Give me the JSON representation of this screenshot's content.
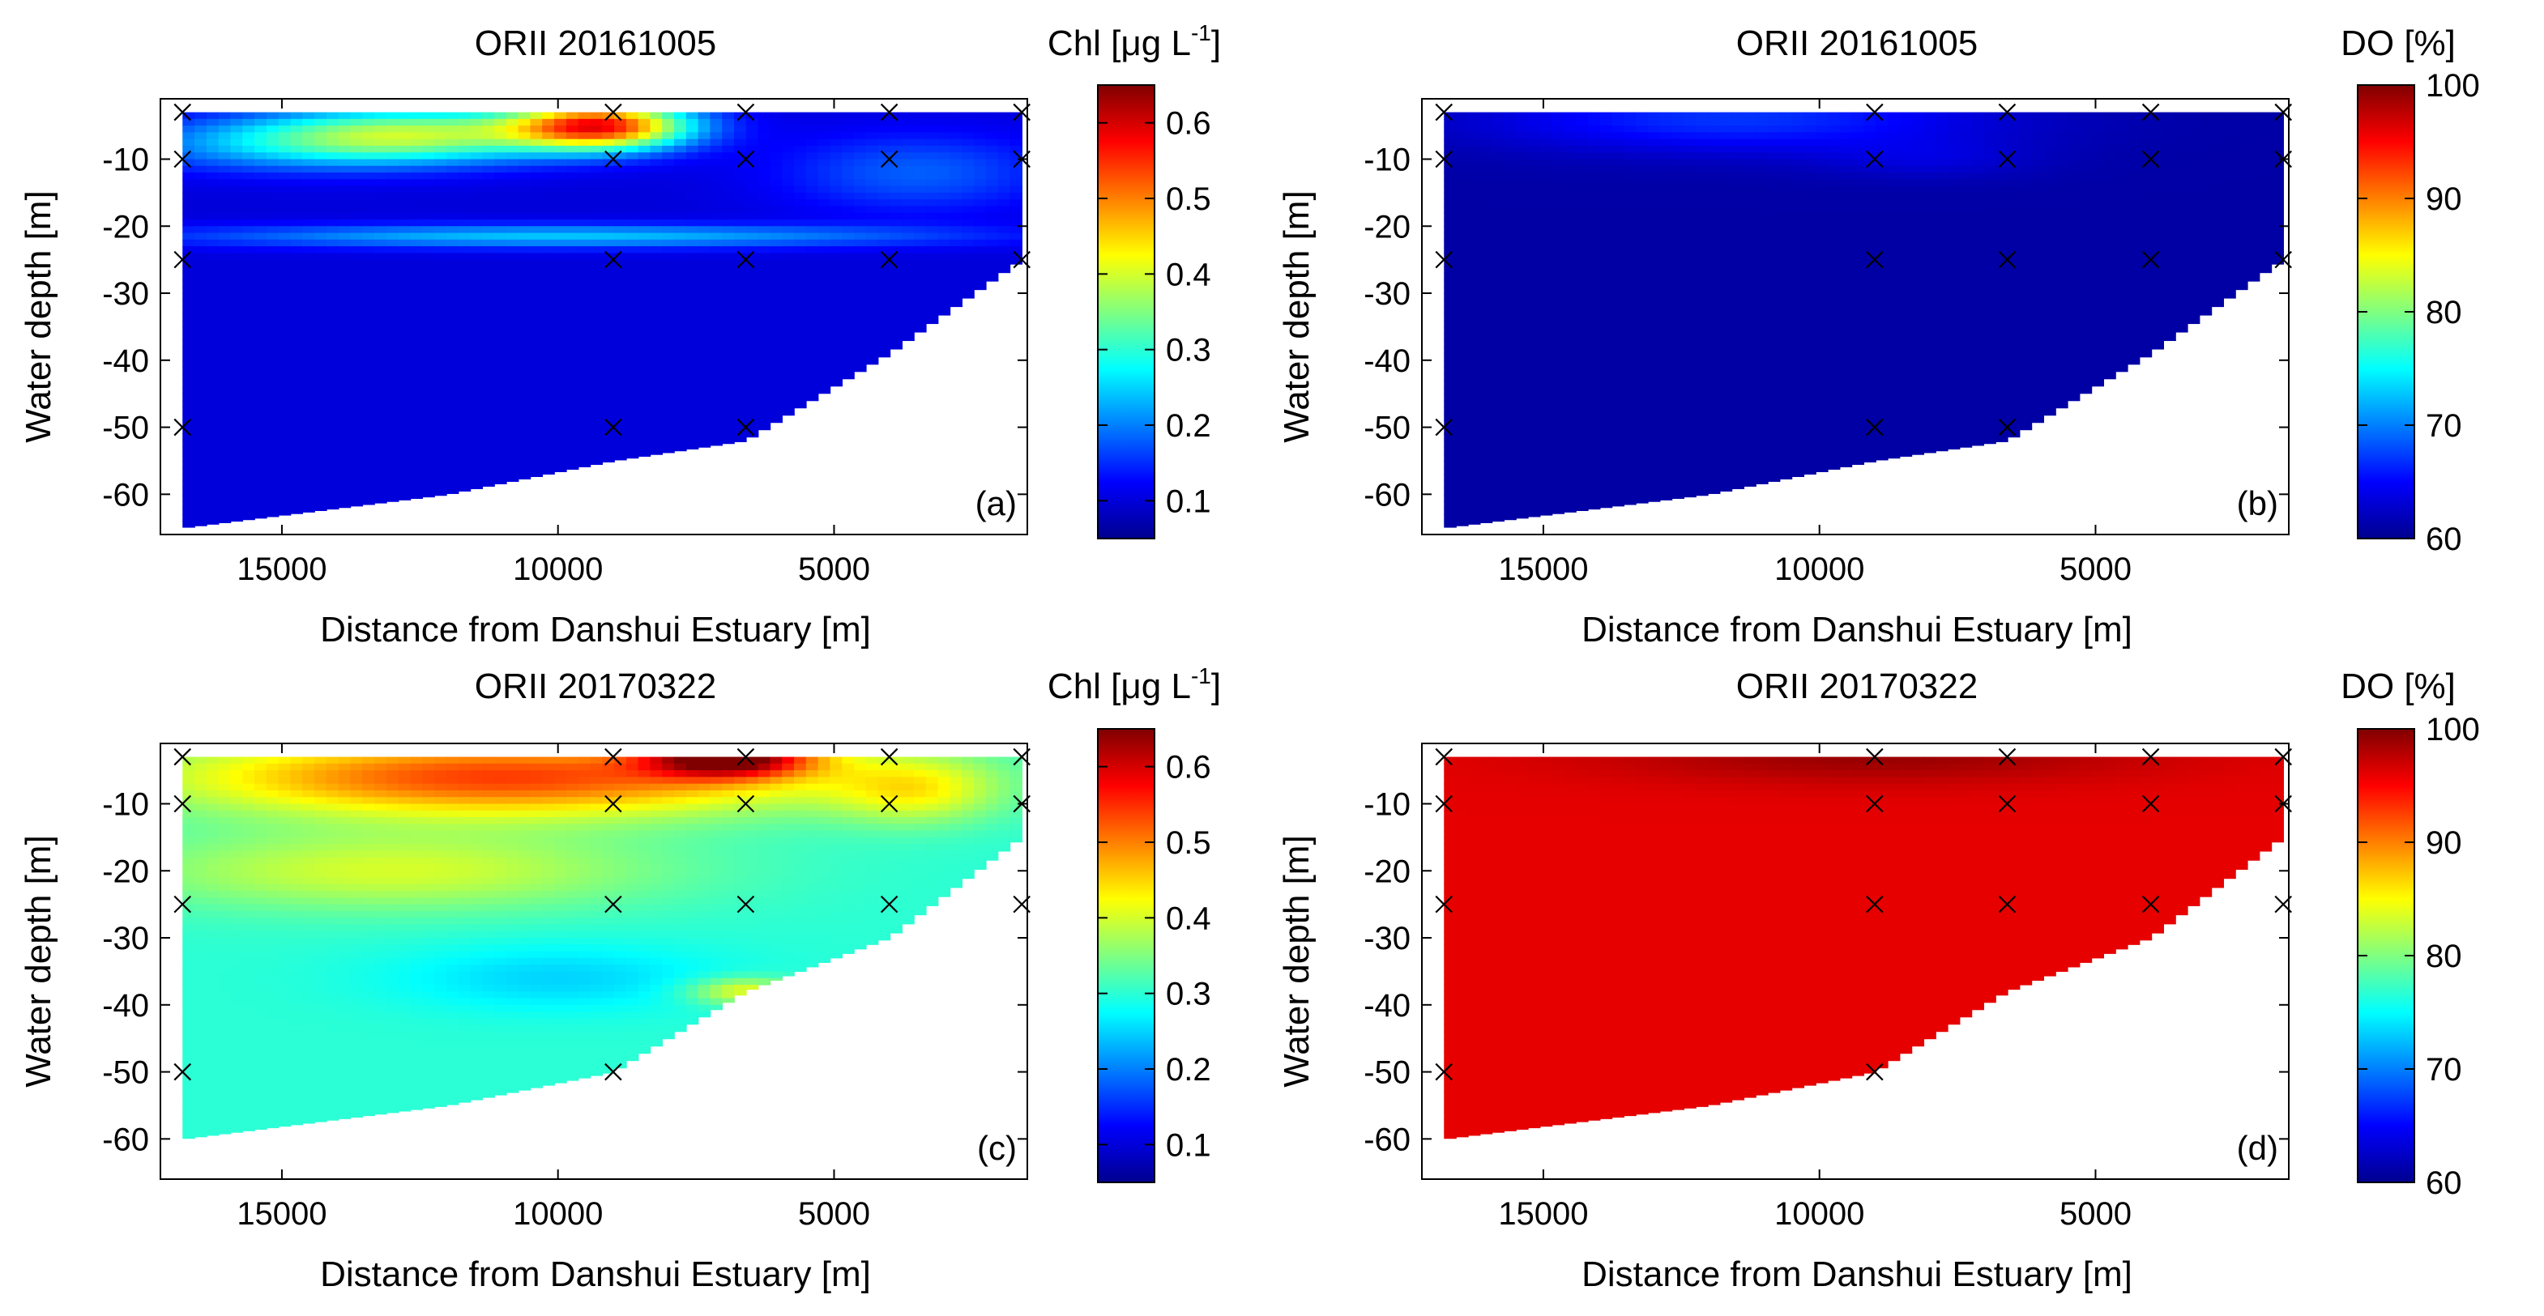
{
  "chart_data": [
    {
      "type": "heatmap",
      "panel_label": "(a)",
      "title": "ORII 20161005",
      "xlabel": "Distance from Danshui Estuary [m]",
      "ylabel": "Water depth [m]",
      "xlim": [
        17200,
        1500
      ],
      "ylim": [
        -66,
        -1
      ],
      "xticks": [
        15000,
        10000,
        5000
      ],
      "yticks": [
        -10,
        -20,
        -30,
        -40,
        -50,
        -60
      ],
      "variable": "Chl",
      "colorbar": {
        "label_main": "Chl [",
        "label_mu": "μ",
        "label_rest": "g L",
        "label_sup": "-1",
        "label_close": "]",
        "min": 0.05,
        "max": 0.65,
        "ticks": [
          0.1,
          0.2,
          0.3,
          0.4,
          0.5,
          0.6
        ]
      },
      "bottom_profile": [
        [
          16800,
          -65
        ],
        [
          12000,
          -60
        ],
        [
          9000,
          -55
        ],
        [
          6600,
          -52
        ],
        [
          4000,
          -39
        ],
        [
          1600,
          -25
        ]
      ],
      "stations": [
        [
          16800,
          -3
        ],
        [
          16800,
          -10
        ],
        [
          16800,
          -25
        ],
        [
          16800,
          -50
        ],
        [
          9000,
          -3
        ],
        [
          9000,
          -10
        ],
        [
          9000,
          -25
        ],
        [
          9000,
          -50
        ],
        [
          6600,
          -3
        ],
        [
          6600,
          -10
        ],
        [
          6600,
          -25
        ],
        [
          6600,
          -50
        ],
        [
          4000,
          -3
        ],
        [
          4000,
          -10
        ],
        [
          4000,
          -25
        ],
        [
          1600,
          -3
        ],
        [
          1600,
          -10
        ],
        [
          1600,
          -25
        ]
      ],
      "field_base": 0.1,
      "features": [
        {
          "x": 9200,
          "y": -5,
          "sx": 1600,
          "sy": 3.5,
          "a": 0.42
        },
        {
          "x": 12500,
          "y": -6,
          "sx": 3000,
          "sy": 4,
          "a": 0.22
        },
        {
          "x": 14500,
          "y": -8,
          "sx": 3500,
          "sy": 4,
          "a": 0.12
        },
        {
          "x": 10000,
          "y": -21.5,
          "sx": 7000,
          "sy": 1.8,
          "a": 0.14
        },
        {
          "x": 3500,
          "y": -12,
          "sx": 2500,
          "sy": 6,
          "a": 0.08
        }
      ]
    },
    {
      "type": "heatmap",
      "panel_label": "(b)",
      "title": "ORII 20161005",
      "xlabel": "Distance from Danshui Estuary [m]",
      "ylabel": "Water depth [m]",
      "xlim": [
        17200,
        1500
      ],
      "ylim": [
        -66,
        -1
      ],
      "xticks": [
        15000,
        10000,
        5000
      ],
      "yticks": [
        -10,
        -20,
        -30,
        -40,
        -50,
        -60
      ],
      "variable": "DO",
      "colorbar": {
        "label_main": "DO [%]",
        "min": 60,
        "max": 100,
        "ticks": [
          60,
          70,
          80,
          90,
          100
        ]
      },
      "bottom_profile": [
        [
          16800,
          -65
        ],
        [
          12000,
          -60
        ],
        [
          9000,
          -55
        ],
        [
          6600,
          -52
        ],
        [
          4000,
          -39
        ],
        [
          1600,
          -25
        ]
      ],
      "stations": [
        [
          16800,
          -3
        ],
        [
          16800,
          -10
        ],
        [
          16800,
          -25
        ],
        [
          16800,
          -50
        ],
        [
          9000,
          -3
        ],
        [
          9000,
          -10
        ],
        [
          9000,
          -25
        ],
        [
          9000,
          -50
        ],
        [
          6600,
          -3
        ],
        [
          6600,
          -10
        ],
        [
          6600,
          -25
        ],
        [
          6600,
          -50
        ],
        [
          4000,
          -3
        ],
        [
          4000,
          -10
        ],
        [
          4000,
          -25
        ],
        [
          1600,
          -3
        ],
        [
          1600,
          -10
        ],
        [
          1600,
          -25
        ]
      ],
      "field_base": 61,
      "features": [
        {
          "x": 11500,
          "y": -4,
          "sx": 4500,
          "sy": 5,
          "a": 6
        },
        {
          "x": 8000,
          "y": -10,
          "sx": 2000,
          "sy": 3,
          "a": 2
        }
      ]
    },
    {
      "type": "heatmap",
      "panel_label": "(c)",
      "title": "ORII 20170322",
      "xlabel": "Distance from Danshui Estuary [m]",
      "ylabel": "Water depth [m]",
      "xlim": [
        17200,
        1500
      ],
      "ylim": [
        -66,
        -1
      ],
      "xticks": [
        15000,
        10000,
        5000
      ],
      "yticks": [
        -10,
        -20,
        -30,
        -40,
        -50,
        -60
      ],
      "variable": "Chl",
      "colorbar": {
        "label_main": "Chl [",
        "label_mu": "μ",
        "label_rest": "g L",
        "label_sup": "-1",
        "label_close": "]",
        "min": 0.05,
        "max": 0.65,
        "ticks": [
          0.1,
          0.2,
          0.3,
          0.4,
          0.5,
          0.6
        ]
      },
      "bottom_profile": [
        [
          16800,
          -60
        ],
        [
          12000,
          -55
        ],
        [
          9000,
          -50
        ],
        [
          6600,
          -38
        ],
        [
          4000,
          -30
        ],
        [
          1600,
          -15
        ]
      ],
      "stations": [
        [
          16800,
          -3
        ],
        [
          16800,
          -10
        ],
        [
          16800,
          -25
        ],
        [
          16800,
          -50
        ],
        [
          9000,
          -3
        ],
        [
          9000,
          -10
        ],
        [
          9000,
          -25
        ],
        [
          9000,
          -50
        ],
        [
          6600,
          -3
        ],
        [
          6600,
          -10
        ],
        [
          6600,
          -25
        ],
        [
          4000,
          -3
        ],
        [
          4000,
          -10
        ],
        [
          4000,
          -25
        ],
        [
          1600,
          -3
        ],
        [
          1600,
          -10
        ],
        [
          1600,
          -25
        ]
      ],
      "field_base": 0.3,
      "features": [
        {
          "x": 6900,
          "y": -3,
          "sx": 1500,
          "sy": 3,
          "a": 0.3
        },
        {
          "x": 11000,
          "y": -6,
          "sx": 6000,
          "sy": 6,
          "a": 0.24
        },
        {
          "x": 3500,
          "y": -8,
          "sx": 1500,
          "sy": 5,
          "a": 0.1
        },
        {
          "x": 13000,
          "y": -20,
          "sx": 5000,
          "sy": 6,
          "a": 0.1
        },
        {
          "x": 10000,
          "y": -36,
          "sx": 3000,
          "sy": 5,
          "a": -0.05
        },
        {
          "x": 6600,
          "y": -38,
          "sx": 1000,
          "sy": 2,
          "a": 0.12
        }
      ]
    },
    {
      "type": "heatmap",
      "panel_label": "(d)",
      "title": "ORII 20170322",
      "xlabel": "Distance from Danshui Estuary [m]",
      "ylabel": "Water depth [m]",
      "xlim": [
        17200,
        1500
      ],
      "ylim": [
        -66,
        -1
      ],
      "xticks": [
        15000,
        10000,
        5000
      ],
      "yticks": [
        -10,
        -20,
        -30,
        -40,
        -50,
        -60
      ],
      "variable": "DO",
      "colorbar": {
        "label_main": "DO [%]",
        "min": 60,
        "max": 100,
        "ticks": [
          60,
          70,
          80,
          90,
          100
        ]
      },
      "bottom_profile": [
        [
          16800,
          -60
        ],
        [
          12000,
          -55
        ],
        [
          9000,
          -50
        ],
        [
          6600,
          -38
        ],
        [
          4000,
          -30
        ],
        [
          1600,
          -15
        ]
      ],
      "stations": [
        [
          16800,
          -3
        ],
        [
          16800,
          -10
        ],
        [
          16800,
          -25
        ],
        [
          16800,
          -50
        ],
        [
          9000,
          -3
        ],
        [
          9000,
          -10
        ],
        [
          9000,
          -25
        ],
        [
          9000,
          -50
        ],
        [
          6600,
          -3
        ],
        [
          6600,
          -10
        ],
        [
          6600,
          -25
        ],
        [
          4000,
          -3
        ],
        [
          4000,
          -10
        ],
        [
          4000,
          -25
        ],
        [
          1600,
          -3
        ],
        [
          1600,
          -10
        ],
        [
          1600,
          -25
        ]
      ],
      "field_base": 96,
      "features": [
        {
          "x": 9000,
          "y": -3,
          "sx": 5000,
          "sy": 4,
          "a": 3
        }
      ]
    }
  ]
}
